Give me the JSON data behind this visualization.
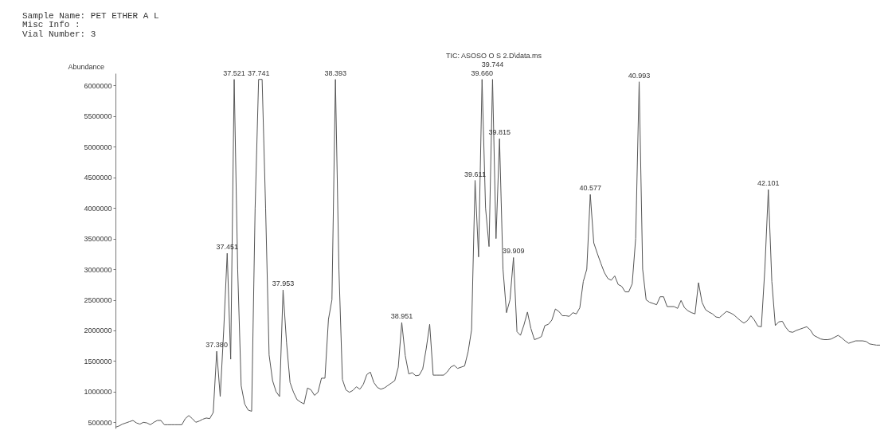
{
  "chart_data": {
    "type": "line",
    "title": "Sample Name: PET ETHER A L",
    "subtitle": [
      "Misc Info  :",
      "Vial Number: 3"
    ],
    "ylabel": "Abundance",
    "categories": [
      null,
      null,
      null,
      null,
      null,
      null,
      null,
      null,
      null,
      null,
      null,
      null,
      null,
      null,
      null,
      null,
      null,
      null,
      null,
      null,
      null,
      null,
      null,
      null,
      null,
      null,
      null,
      null,
      null,
      null,
      null,
      null,
      null,
      null,
      null,
      null,
      null,
      null,
      null,
      null,
      null,
      null,
      null,
      null,
      null,
      null,
      null,
      null,
      null,
      null,
      null,
      null,
      null,
      null,
      null,
      null,
      null,
      null,
      null,
      null,
      null,
      null,
      null,
      null,
      null,
      null,
      null,
      null,
      null,
      null,
      null,
      null,
      null,
      null,
      null,
      null,
      null,
      null,
      null,
      null,
      null,
      null,
      null,
      null,
      null,
      null,
      null,
      null,
      null,
      null,
      null,
      null,
      null,
      null,
      null,
      null,
      null,
      null,
      null,
      null,
      null,
      null,
      null,
      null,
      null,
      null,
      null,
      null,
      null,
      null,
      null,
      null,
      null,
      null,
      null,
      null,
      null,
      null,
      null,
      null,
      null,
      null,
      null,
      null,
      null,
      null,
      null,
      null,
      null,
      null,
      null,
      null,
      null,
      null,
      null,
      null,
      null,
      null,
      null,
      null,
      null,
      null,
      null,
      null,
      null,
      null,
      null,
      null,
      null,
      null,
      null,
      null,
      null,
      null,
      null,
      null,
      null,
      null,
      null,
      null,
      null,
      null,
      null,
      null,
      null,
      null,
      null,
      null,
      null,
      null,
      null,
      null,
      null,
      null,
      null,
      null,
      null,
      null,
      null,
      null,
      null,
      null,
      null,
      null,
      null,
      null,
      null,
      null,
      null,
      null,
      null,
      null,
      null,
      null,
      null,
      null,
      null,
      null,
      null,
      null,
      null,
      null,
      null,
      null,
      null,
      null,
      null,
      null,
      null,
      null,
      null,
      null,
      null,
      null,
      null,
      null,
      null,
      null,
      null,
      null
    ],
    "series": [
      {
        "type": "line",
        "color": "#555555",
        "values": [
          420000,
          440000,
          470000,
          490000,
          510000,
          530000,
          490000,
          470000,
          500000,
          490000,
          460000,
          500000,
          530000,
          530000,
          460000,
          460000,
          460000,
          460000,
          460000,
          460000,
          560000,
          610000,
          560000,
          500000,
          520000,
          550000,
          570000,
          560000,
          660000,
          1660000,
          920000,
          2000000,
          3260000,
          1530000,
          6100000,
          3000000,
          1100000,
          800000,
          700000,
          680000,
          4000000,
          6100000,
          6100000,
          4000000,
          1600000,
          1180000,
          1000000,
          920000,
          2660000,
          1800000,
          1150000,
          990000,
          870000,
          830000,
          800000,
          1060000,
          1030000,
          940000,
          990000,
          1220000,
          1220000,
          2180000,
          2500000,
          6100000,
          3000000,
          1200000,
          1030000,
          990000,
          1020000,
          1080000,
          1040000,
          1120000,
          1280000,
          1320000,
          1150000,
          1070000,
          1040000,
          1060000,
          1100000,
          1140000,
          1180000,
          1400000,
          2130000,
          1590000,
          1290000,
          1310000,
          1260000,
          1270000,
          1370000,
          1700000,
          2100000,
          1270000,
          1270000,
          1270000,
          1270000,
          1320000,
          1400000,
          1430000,
          1380000,
          1400000,
          1420000,
          1650000,
          2010000,
          4450000,
          3200000,
          6100000,
          4000000,
          3370000,
          6100000,
          3500000,
          5130000,
          3000000,
          2290000,
          2500000,
          3190000,
          1980000,
          1920000,
          2090000,
          2300000,
          2030000,
          1850000,
          1870000,
          1900000,
          2080000,
          2100000,
          2170000,
          2350000,
          2310000,
          2240000,
          2240000,
          2230000,
          2290000,
          2270000,
          2370000,
          2800000,
          3000000,
          4220000,
          3430000,
          3260000,
          3100000,
          2950000,
          2850000,
          2820000,
          2890000,
          2750000,
          2720000,
          2630000,
          2630000,
          2760000,
          3500000,
          6060000,
          3000000,
          2500000,
          2460000,
          2440000,
          2420000,
          2550000,
          2550000,
          2390000,
          2390000,
          2390000,
          2360000,
          2490000,
          2370000,
          2320000,
          2290000,
          2270000,
          2780000,
          2460000,
          2340000,
          2300000,
          2270000,
          2220000,
          2210000,
          2260000,
          2310000,
          2290000,
          2260000,
          2210000,
          2160000,
          2120000,
          2160000,
          2240000,
          2170000,
          2070000,
          2060000,
          3000000,
          4300000,
          2800000,
          2080000,
          2140000,
          2150000,
          2050000,
          1980000,
          1970000,
          2000000,
          2020000,
          2040000,
          2060000,
          2010000,
          1920000,
          1890000,
          1860000,
          1850000,
          1850000,
          1860000,
          1890000,
          1920000,
          1880000,
          1830000,
          1790000,
          1810000,
          1830000,
          1830000,
          1830000,
          1820000,
          1780000,
          1770000,
          1760000,
          1760000
        ]
      }
    ],
    "ylim": [
      400000,
      6200000
    ],
    "yticks": [
      500000,
      1000000,
      1500000,
      2000000,
      2500000,
      3000000,
      3500000,
      4000000,
      4500000,
      5000000,
      5500000,
      6000000
    ],
    "tick_labels": "y",
    "grid": false,
    "line_style": "solid",
    "annotations": [
      "TIC: ASOSO O S 2.D\\data.ms",
      {
        "text": "37.380",
        "y": 1660000
      },
      {
        "text": "37.451",
        "y": 3260000
      },
      {
        "text": "37.521",
        "y": 6100000
      },
      {
        "text": "37.741",
        "y": 6100000
      },
      {
        "text": "37.953",
        "y": 2660000
      },
      {
        "text": "38.393",
        "y": 6100000
      },
      {
        "text": "38.951",
        "y": 2130000
      },
      {
        "text": "39.611",
        "y": 4450000
      },
      {
        "text": "39.660",
        "y": 6100000
      },
      {
        "text": "39.744",
        "y": 6100000
      },
      {
        "text": "39.815",
        "y": 5130000
      },
      {
        "text": "39.909",
        "y": 3190000
      },
      {
        "text": "40.577",
        "y": 4220000
      },
      {
        "text": "40.993",
        "y": 6060000
      },
      {
        "text": "42.101",
        "y": 4300000
      }
    ]
  }
}
